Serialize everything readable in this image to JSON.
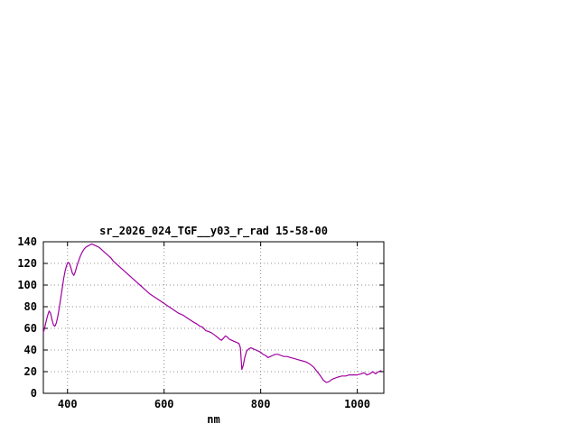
{
  "window": {
    "background_color": "#ffffff"
  },
  "chart_data": {
    "type": "line",
    "title": "sr_2026_024_TGF__y03_r_rad 15-58-00",
    "xlabel": "nm",
    "ylabel": "",
    "xlim": [
      350,
      1055
    ],
    "ylim": [
      0,
      140
    ],
    "xticks": [
      400,
      600,
      800,
      1000
    ],
    "yticks": [
      0,
      20,
      40,
      60,
      80,
      100,
      120,
      140
    ],
    "grid": true,
    "grid_color": "#909090",
    "line_color": "#a000a0",
    "axis_color": "#000000",
    "legend": "none",
    "points": [
      [
        350,
        56
      ],
      [
        353,
        61
      ],
      [
        356,
        67
      ],
      [
        359,
        72
      ],
      [
        362,
        76
      ],
      [
        365,
        74
      ],
      [
        368,
        68
      ],
      [
        371,
        63
      ],
      [
        374,
        62
      ],
      [
        377,
        65
      ],
      [
        380,
        71
      ],
      [
        383,
        79
      ],
      [
        386,
        88
      ],
      [
        389,
        97
      ],
      [
        392,
        106
      ],
      [
        395,
        113
      ],
      [
        398,
        118
      ],
      [
        401,
        121
      ],
      [
        404,
        120
      ],
      [
        407,
        116
      ],
      [
        410,
        111
      ],
      [
        413,
        109
      ],
      [
        416,
        112
      ],
      [
        419,
        117
      ],
      [
        422,
        121
      ],
      [
        426,
        126
      ],
      [
        430,
        130
      ],
      [
        434,
        133
      ],
      [
        438,
        135
      ],
      [
        442,
        136
      ],
      [
        446,
        137
      ],
      [
        450,
        138
      ],
      [
        455,
        137
      ],
      [
        460,
        136
      ],
      [
        465,
        135
      ],
      [
        470,
        133
      ],
      [
        475,
        131
      ],
      [
        480,
        129
      ],
      [
        485,
        127
      ],
      [
        490,
        125
      ],
      [
        495,
        122
      ],
      [
        500,
        120
      ],
      [
        510,
        116
      ],
      [
        520,
        112
      ],
      [
        530,
        108
      ],
      [
        540,
        104
      ],
      [
        550,
        100
      ],
      [
        560,
        96
      ],
      [
        570,
        92
      ],
      [
        580,
        89
      ],
      [
        590,
        86
      ],
      [
        600,
        83
      ],
      [
        610,
        80
      ],
      [
        620,
        77
      ],
      [
        630,
        74
      ],
      [
        640,
        72
      ],
      [
        650,
        69
      ],
      [
        660,
        66
      ],
      [
        668,
        64
      ],
      [
        674,
        62
      ],
      [
        680,
        61
      ],
      [
        686,
        58
      ],
      [
        692,
        57
      ],
      [
        698,
        56
      ],
      [
        704,
        54
      ],
      [
        710,
        52
      ],
      [
        715,
        50
      ],
      [
        719,
        49
      ],
      [
        723,
        51
      ],
      [
        727,
        53
      ],
      [
        731,
        52
      ],
      [
        735,
        50
      ],
      [
        740,
        49
      ],
      [
        745,
        48
      ],
      [
        750,
        47
      ],
      [
        755,
        46
      ],
      [
        758,
        42
      ],
      [
        761,
        22
      ],
      [
        764,
        26
      ],
      [
        767,
        33
      ],
      [
        771,
        39
      ],
      [
        775,
        41
      ],
      [
        780,
        42
      ],
      [
        785,
        41
      ],
      [
        790,
        40
      ],
      [
        795,
        39
      ],
      [
        800,
        38
      ],
      [
        805,
        36
      ],
      [
        810,
        35
      ],
      [
        815,
        33
      ],
      [
        820,
        34
      ],
      [
        825,
        35
      ],
      [
        830,
        36
      ],
      [
        836,
        36
      ],
      [
        842,
        35
      ],
      [
        848,
        34
      ],
      [
        855,
        34
      ],
      [
        862,
        33
      ],
      [
        870,
        32
      ],
      [
        878,
        31
      ],
      [
        886,
        30
      ],
      [
        894,
        29
      ],
      [
        902,
        27
      ],
      [
        910,
        24
      ],
      [
        917,
        20
      ],
      [
        924,
        16
      ],
      [
        930,
        12
      ],
      [
        936,
        10
      ],
      [
        942,
        11
      ],
      [
        948,
        13
      ],
      [
        954,
        14
      ],
      [
        960,
        15
      ],
      [
        968,
        16
      ],
      [
        976,
        16
      ],
      [
        984,
        17
      ],
      [
        992,
        17
      ],
      [
        1000,
        17
      ],
      [
        1008,
        18
      ],
      [
        1014,
        19
      ],
      [
        1020,
        17
      ],
      [
        1026,
        18
      ],
      [
        1032,
        20
      ],
      [
        1038,
        18
      ],
      [
        1044,
        20
      ],
      [
        1050,
        21
      ]
    ]
  }
}
